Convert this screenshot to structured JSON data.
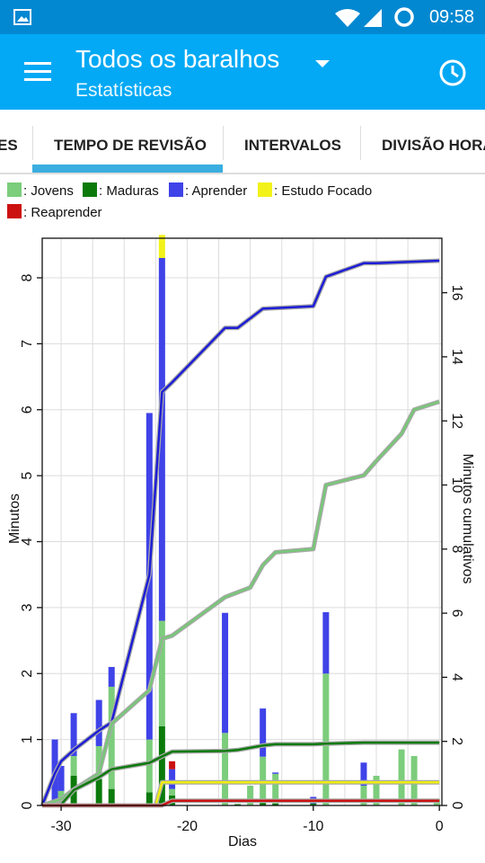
{
  "status_bar": {
    "time": "09:58"
  },
  "app_bar": {
    "title": "Todos os baralhos",
    "subtitle": "Estatísticas"
  },
  "tabs": [
    {
      "label": "ES"
    },
    {
      "label": "TEMPO DE REVISÃO"
    },
    {
      "label": "INTERVALOS"
    },
    {
      "label": "DIVISÃO HORÁRIA"
    }
  ],
  "legend": [
    {
      "label": ": Jovens",
      "color": "#7ccd7c"
    },
    {
      "label": ": Maduras",
      "color": "#0b7a0b"
    },
    {
      "label": ": Aprender",
      "color": "#3f43e8"
    },
    {
      "label": ": Estudo Focado",
      "color": "#f2f21a"
    },
    {
      "label": ": Reaprender",
      "color": "#cc1111"
    }
  ],
  "chart_data": {
    "type": "bar",
    "xlabel": "Dias",
    "ylabel": "Minutos",
    "ylabel_right": "Minutos cumulativos",
    "xlim": [
      -31.5,
      0.2
    ],
    "ylim": [
      0,
      8.6
    ],
    "ylim_right": [
      0,
      17.7
    ],
    "x_ticks": [
      -30,
      -20,
      -10,
      0
    ],
    "y_ticks": [
      0,
      1,
      2,
      3,
      4,
      5,
      6,
      7,
      8
    ],
    "y_ticks_right": [
      0,
      2,
      4,
      6,
      8,
      10,
      12,
      14,
      16
    ],
    "bar_series": [
      {
        "name": "Maduras",
        "color": "#0b7a0b",
        "x": [
          -30,
          -29,
          -27,
          -26,
          -23,
          -22,
          -21.2,
          -16,
          -14,
          -13,
          -10
        ],
        "values": [
          0.02,
          0.45,
          0.4,
          0.25,
          0.2,
          1.2,
          0.15,
          0.02,
          0.04,
          0.03,
          0.03
        ]
      },
      {
        "name": "Jovens",
        "color": "#7ccd7c",
        "x": [
          -30,
          -29,
          -27,
          -26,
          -23,
          -22,
          -21.2,
          -17,
          -15,
          -14,
          -13,
          -9,
          -6,
          -5,
          -3,
          -2,
          -0.2
        ],
        "values": [
          0.2,
          0.3,
          0.5,
          1.55,
          0.8,
          1.6,
          0.1,
          1.1,
          0.3,
          0.7,
          0.45,
          2.0,
          0.3,
          0.45,
          0.85,
          0.75,
          0.1
        ]
      },
      {
        "name": "Aprender",
        "color": "#3f43e8",
        "x": [
          -30.5,
          -30,
          -29,
          -27,
          -26,
          -23,
          -22,
          -21.2,
          -17,
          -14,
          -13,
          -10,
          -9,
          -6
        ],
        "values": [
          1.0,
          0.38,
          0.65,
          0.7,
          0.3,
          4.95,
          5.5,
          0.3,
          1.82,
          0.73,
          0.02,
          0.1,
          0.93,
          0.35
        ]
      },
      {
        "name": "Reaprender",
        "color": "#cc1111",
        "x": [
          -21.2
        ],
        "values": [
          0.12
        ]
      },
      {
        "name": "Estudo Focado",
        "color": "#f2f21a",
        "x": [
          -22
        ],
        "values": [
          0.35
        ]
      }
    ],
    "cumulative_series": [
      {
        "name": "Aprender",
        "color": "#1d1dd6",
        "x": [
          -31.5,
          -30.5,
          -30,
          -29,
          -27,
          -26,
          -23,
          -22,
          -21.2,
          -17,
          -16,
          -15,
          -14,
          -13,
          -10,
          -9,
          -6,
          -5,
          0
        ],
        "values": [
          0,
          1.0,
          1.38,
          1.73,
          2.34,
          2.59,
          7.2,
          12.9,
          13.2,
          14.9,
          14.9,
          15.2,
          15.5,
          15.52,
          15.58,
          16.5,
          16.92,
          16.92,
          17.0
        ]
      },
      {
        "name": "Jovens",
        "color": "#77c777",
        "x": [
          -31.5,
          -30,
          -29,
          -27,
          -26,
          -23,
          -22,
          -21.2,
          -17,
          -15,
          -14,
          -13,
          -10,
          -9,
          -6,
          -5,
          -3,
          -2,
          0
        ],
        "values": [
          0,
          0.2,
          0.5,
          1.0,
          2.55,
          3.6,
          5.2,
          5.3,
          6.5,
          6.8,
          7.5,
          7.9,
          8.0,
          10.0,
          10.3,
          10.75,
          11.6,
          12.35,
          12.6
        ]
      },
      {
        "name": "Maduras",
        "color": "#0b7a0b",
        "x": [
          -31.5,
          -30,
          -29,
          -27,
          -26,
          -23,
          -22,
          -21.2,
          -17,
          -16,
          -14,
          -13,
          -10,
          -9,
          -6,
          0
        ],
        "values": [
          0,
          0.03,
          0.48,
          0.88,
          1.13,
          1.33,
          1.53,
          1.68,
          1.7,
          1.73,
          1.87,
          1.91,
          1.91,
          1.93,
          1.96,
          1.96
        ]
      },
      {
        "name": "Estudo Focado",
        "color": "#eeee10",
        "x": [
          -31.5,
          -22.5,
          -22,
          0
        ],
        "values": [
          0,
          0,
          0.72,
          0.72
        ]
      },
      {
        "name": "Reaprender",
        "color": "#cc1111",
        "x": [
          -31.5,
          -22,
          -21.2,
          0
        ],
        "values": [
          0,
          0,
          0.15,
          0.15
        ]
      }
    ]
  }
}
